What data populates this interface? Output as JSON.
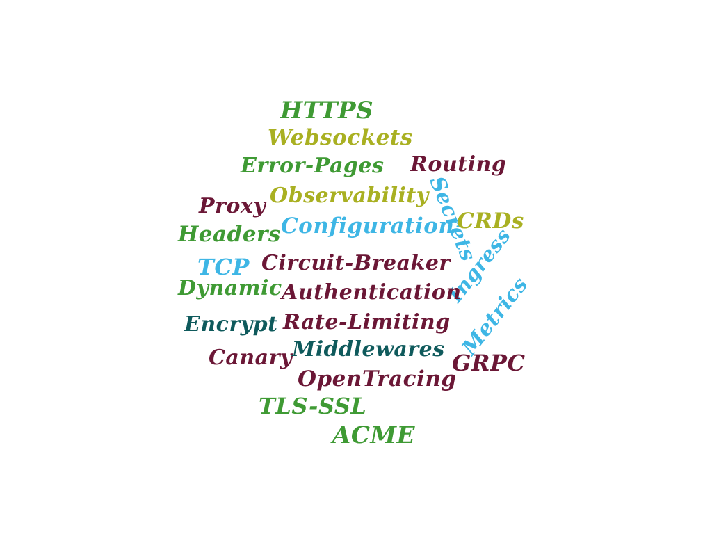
{
  "words": {
    "https": "HTTPS",
    "websockets": "Websockets",
    "error_pages": "Error-Pages",
    "routing": "Routing",
    "observability": "Observability",
    "proxy": "Proxy",
    "secrets": "Secrets",
    "crds": "CRDs",
    "configuration": "Configuration",
    "headers": "Headers",
    "tcp": "TCP",
    "circuit_breaker": "Circuit-Breaker",
    "ingress": "Ingress",
    "dynamic": "Dynamic",
    "authentication": "Authentication",
    "metrics": "Metrics",
    "encrypt": "Encrypt",
    "rate_limiting": "Rate-Limiting",
    "canary": "Canary",
    "middlewares": "Middlewares",
    "grpc": "GRPC",
    "opentracing": "OpenTracing",
    "tls_ssl": "TLS-SSL",
    "acme": "ACME"
  },
  "colors": {
    "green": "#3f9a34",
    "olive": "#a9b022",
    "maroon": "#6b1736",
    "blue": "#3eb6e5",
    "teal": "#0f5a5c",
    "background": "#ffffff"
  }
}
